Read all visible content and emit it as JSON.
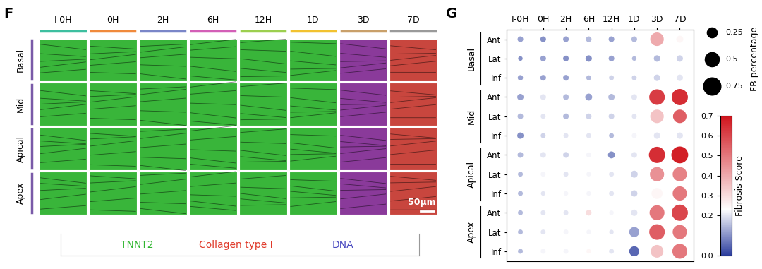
{
  "panel_F": {
    "label": "F",
    "columns": [
      "I-0H",
      "0H",
      "2H",
      "6H",
      "12H",
      "1D",
      "3D",
      "7D"
    ],
    "column_colors": [
      "#3dbfa0",
      "#f08a3c",
      "#7a86c8",
      "#d35fb7",
      "#9ccf4f",
      "#f2c230",
      "#c9a06a",
      "#9a9a9a"
    ],
    "rows": [
      "Basal",
      "Mid",
      "Apical",
      "Apex"
    ],
    "stains": [
      {
        "name": "TNNT2",
        "color": "#2db52d"
      },
      {
        "name": "Collagen type I",
        "color": "#e03a2a"
      },
      {
        "name": "DNA",
        "color": "#4a4ac0"
      }
    ],
    "scale_bar": "50μm"
  },
  "chart_data": {
    "type": "dot",
    "label": "G",
    "x": [
      "I-0H",
      "0H",
      "2H",
      "6H",
      "12H",
      "1D",
      "3D",
      "7D"
    ],
    "row_groups": [
      {
        "name": "Basal",
        "rows": [
          "Ant",
          "Lat",
          "Inf"
        ]
      },
      {
        "name": "Mid",
        "rows": [
          "Ant",
          "Lat",
          "Inf"
        ]
      },
      {
        "name": "Apical",
        "rows": [
          "Ant",
          "Lat",
          "Inf"
        ]
      },
      {
        "name": "Apex",
        "rows": [
          "Ant",
          "Lat",
          "Inf"
        ]
      }
    ],
    "fb_percentage": [
      [
        0.08,
        0.08,
        0.08,
        0.08,
        0.08,
        0.08,
        0.45,
        0.12
      ],
      [
        0.05,
        0.08,
        0.08,
        0.1,
        0.08,
        0.05,
        0.1,
        0.1
      ],
      [
        0.07,
        0.08,
        0.08,
        0.06,
        0.06,
        0.06,
        0.1,
        0.1
      ],
      [
        0.1,
        0.08,
        0.08,
        0.12,
        0.1,
        0.08,
        0.6,
        0.65
      ],
      [
        0.08,
        0.06,
        0.08,
        0.08,
        0.08,
        0.06,
        0.45,
        0.45
      ],
      [
        0.1,
        0.06,
        0.06,
        0.06,
        0.06,
        0.06,
        0.1,
        0.1
      ],
      [
        0.08,
        0.08,
        0.08,
        0.06,
        0.12,
        0.08,
        0.65,
        0.7
      ],
      [
        0.06,
        0.06,
        0.06,
        0.05,
        0.06,
        0.12,
        0.5,
        0.5
      ],
      [
        0.06,
        0.05,
        0.05,
        0.05,
        0.06,
        0.1,
        0.3,
        0.5
      ],
      [
        0.06,
        0.06,
        0.06,
        0.08,
        0.05,
        0.1,
        0.55,
        0.65
      ],
      [
        0.06,
        0.06,
        0.06,
        0.05,
        0.05,
        0.25,
        0.6,
        0.5
      ],
      [
        0.06,
        0.06,
        0.06,
        0.05,
        0.06,
        0.25,
        0.4,
        0.55
      ]
    ],
    "fibrosis_score": [
      [
        0.12,
        0.1,
        0.12,
        0.15,
        0.12,
        0.15,
        0.4,
        0.25
      ],
      [
        0.1,
        0.12,
        0.1,
        0.1,
        0.12,
        0.15,
        0.15,
        0.18
      ],
      [
        0.12,
        0.12,
        0.12,
        0.15,
        0.18,
        0.18,
        0.18,
        0.2
      ],
      [
        0.12,
        0.2,
        0.15,
        0.12,
        0.15,
        0.2,
        0.62,
        0.65
      ],
      [
        0.15,
        0.2,
        0.15,
        0.18,
        0.18,
        0.2,
        0.35,
        0.55
      ],
      [
        0.1,
        0.18,
        0.2,
        0.2,
        0.15,
        0.22,
        0.2,
        0.2
      ],
      [
        0.15,
        0.2,
        0.18,
        0.22,
        0.1,
        0.2,
        0.65,
        0.68
      ],
      [
        0.15,
        0.22,
        0.2,
        0.22,
        0.2,
        0.18,
        0.45,
        0.48
      ],
      [
        0.15,
        0.2,
        0.22,
        0.22,
        0.2,
        0.18,
        0.25,
        0.5
      ],
      [
        0.15,
        0.2,
        0.2,
        0.3,
        0.22,
        0.2,
        0.5,
        0.6
      ],
      [
        0.15,
        0.2,
        0.22,
        0.22,
        0.2,
        0.12,
        0.55,
        0.5
      ],
      [
        0.15,
        0.22,
        0.22,
        0.25,
        0.2,
        0.05,
        0.35,
        0.5
      ]
    ],
    "size_legend": {
      "title": "FB percentage",
      "values": [
        0.25,
        0.5,
        0.75
      ]
    },
    "colorbar": {
      "title": "Fibrosis Score",
      "range": [
        0,
        0.7
      ],
      "ticks": [
        {
          "value": 0,
          "label": "0.0"
        },
        0.2,
        0.3,
        0.4,
        0.5,
        0.6,
        0.7
      ]
    }
  }
}
